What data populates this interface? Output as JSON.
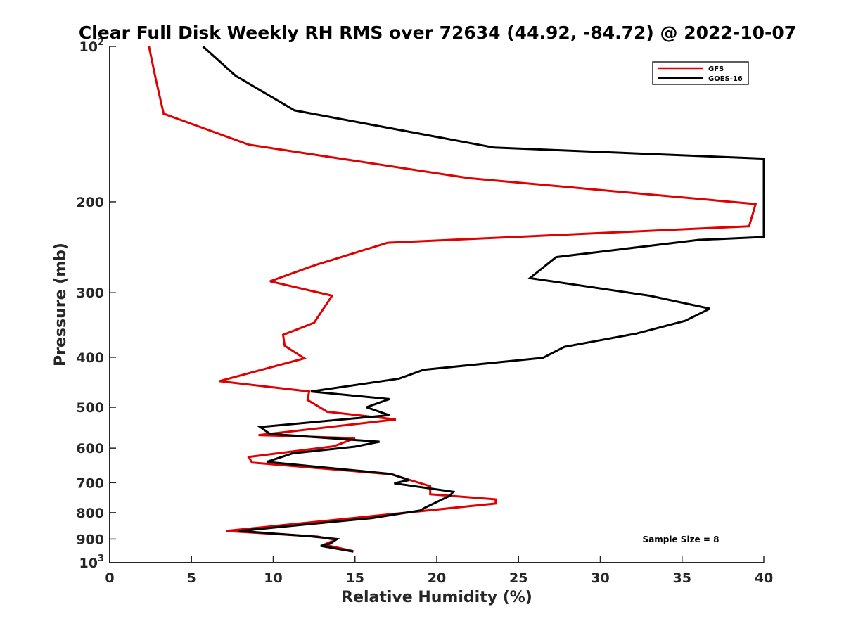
{
  "chart_data": {
    "type": "line",
    "title": "Clear Full Disk Weekly RH RMS over 72634 (44.92, -84.72) @ 2022-10-07",
    "xlabel": "Relative Humidity (%)",
    "ylabel": "Pressure (mb)",
    "xlim": [
      0,
      40
    ],
    "ylim": [
      100,
      1000
    ],
    "yscale": "log",
    "y_reversed": true,
    "xticks": [
      0,
      5,
      10,
      15,
      20,
      25,
      30,
      35,
      40
    ],
    "yticks": [
      {
        "value": 100,
        "label": "10",
        "sup": "2"
      },
      {
        "value": 200,
        "label": "200",
        "sup": ""
      },
      {
        "value": 300,
        "label": "300",
        "sup": ""
      },
      {
        "value": 400,
        "label": "400",
        "sup": ""
      },
      {
        "value": 500,
        "label": "500",
        "sup": ""
      },
      {
        "value": 600,
        "label": "600",
        "sup": ""
      },
      {
        "value": 700,
        "label": "700",
        "sup": ""
      },
      {
        "value": 800,
        "label": "800",
        "sup": ""
      },
      {
        "value": 900,
        "label": "900",
        "sup": ""
      },
      {
        "value": 1000,
        "label": "10",
        "sup": "3"
      }
    ],
    "legend_position": "top-right",
    "annotation": "Sample Size = 8",
    "series": [
      {
        "name": "GFS",
        "color": "#e00000",
        "points": [
          [
            2.4,
            100
          ],
          [
            2.8,
            115
          ],
          [
            3.3,
            135
          ],
          [
            8.5,
            155
          ],
          [
            22,
            180
          ],
          [
            39.5,
            202
          ],
          [
            39.1,
            223
          ],
          [
            17,
            240
          ],
          [
            12.6,
            265
          ],
          [
            9.8,
            285
          ],
          [
            13.6,
            304
          ],
          [
            12.5,
            343
          ],
          [
            10.6,
            362
          ],
          [
            10.7,
            380
          ],
          [
            11.9,
            402
          ],
          [
            6.7,
            445
          ],
          [
            12.2,
            466
          ],
          [
            12.1,
            484
          ],
          [
            13.3,
            510
          ],
          [
            17.5,
            528
          ],
          [
            9.1,
            566
          ],
          [
            15,
            574
          ],
          [
            13.7,
            595
          ],
          [
            8.5,
            624
          ],
          [
            8.7,
            640
          ],
          [
            17.2,
            674
          ],
          [
            19.6,
            711
          ],
          [
            19.6,
            737
          ],
          [
            23.6,
            754
          ],
          [
            23.6,
            768
          ],
          [
            20.7,
            785
          ],
          [
            7.1,
            868
          ],
          [
            12.7,
            890
          ],
          [
            13.8,
            903
          ],
          [
            13.1,
            923
          ],
          [
            14.9,
            950
          ]
        ]
      },
      {
        "name": "GOES-16",
        "color": "#000000",
        "points": [
          [
            5.7,
            100
          ],
          [
            7.7,
            114
          ],
          [
            11.3,
            133
          ],
          [
            23.5,
            157
          ],
          [
            40,
            165
          ],
          [
            40,
            234
          ],
          [
            36,
            237
          ],
          [
            27.3,
            256
          ],
          [
            25.7,
            281
          ],
          [
            33,
            304
          ],
          [
            36.7,
            322
          ],
          [
            35.2,
            340
          ],
          [
            32.2,
            360
          ],
          [
            27.8,
            382
          ],
          [
            26.5,
            401
          ],
          [
            19.2,
            423
          ],
          [
            17.7,
            440
          ],
          [
            12.3,
            466
          ],
          [
            17.1,
            482
          ],
          [
            15.7,
            500
          ],
          [
            17.1,
            518
          ],
          [
            9.2,
            546
          ],
          [
            9.8,
            563
          ],
          [
            16.5,
            583
          ],
          [
            15,
            596
          ],
          [
            11.2,
            614
          ],
          [
            9.6,
            638
          ],
          [
            17.2,
            673
          ],
          [
            18.3,
            692
          ],
          [
            17.4,
            702
          ],
          [
            21,
            729
          ],
          [
            20.8,
            742
          ],
          [
            19.3,
            782
          ],
          [
            19,
            792
          ],
          [
            16,
            820
          ],
          [
            7.9,
            868
          ],
          [
            12.1,
            888
          ],
          [
            13.9,
            900
          ],
          [
            13.5,
            918
          ],
          [
            12.9,
            928
          ],
          [
            14.9,
            952
          ]
        ]
      }
    ]
  }
}
